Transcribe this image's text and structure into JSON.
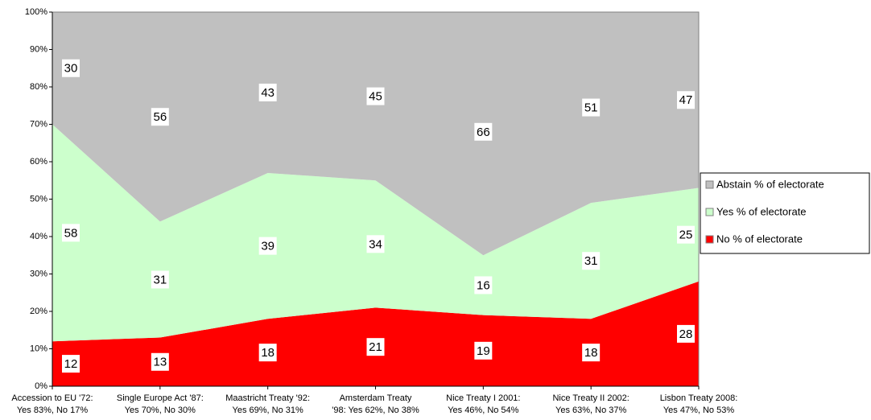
{
  "chart_data": {
    "type": "stacked-area",
    "categories": [
      [
        "Accession to EU '72:",
        "Yes 83%, No 17%"
      ],
      [
        "Single Europe Act '87:",
        "Yes 70%, No 30%"
      ],
      [
        "Maastricht Treaty '92:",
        "Yes 69%, No 31%"
      ],
      [
        "Amsterdam Treaty",
        "'98: Yes 62%, No 38%"
      ],
      [
        "Nice Treaty I 2001:",
        "Yes 46%, No 54%"
      ],
      [
        "Nice Treaty II 2002:",
        "Yes 63%, No 37%"
      ],
      [
        "Lisbon Treaty 2008:",
        "Yes 47%, No 53%"
      ]
    ],
    "series": [
      {
        "name": "No % of electorate",
        "color": "#ff0000",
        "values": [
          12,
          13,
          18,
          21,
          19,
          18,
          28
        ]
      },
      {
        "name": "Yes % of electorate",
        "color": "#ccffcc",
        "values": [
          58,
          31,
          39,
          34,
          16,
          31,
          25
        ]
      },
      {
        "name": "Abstain % of electorate",
        "color": "#c0c0c0",
        "values": [
          30,
          56,
          43,
          45,
          66,
          51,
          47
        ]
      }
    ],
    "ylim": [
      0,
      100
    ],
    "yticks": [
      {
        "value": 0,
        "label": "0%"
      },
      {
        "value": 10,
        "label": "10%"
      },
      {
        "value": 20,
        "label": "20%"
      },
      {
        "value": 30,
        "label": "30%"
      },
      {
        "value": 40,
        "label": "40%"
      },
      {
        "value": 50,
        "label": "50%"
      },
      {
        "value": 60,
        "label": "60%"
      },
      {
        "value": 70,
        "label": "70%"
      },
      {
        "value": 80,
        "label": "80%"
      },
      {
        "value": 90,
        "label": "90%"
      },
      {
        "value": 100,
        "label": "100%"
      }
    ],
    "legend": "right"
  }
}
